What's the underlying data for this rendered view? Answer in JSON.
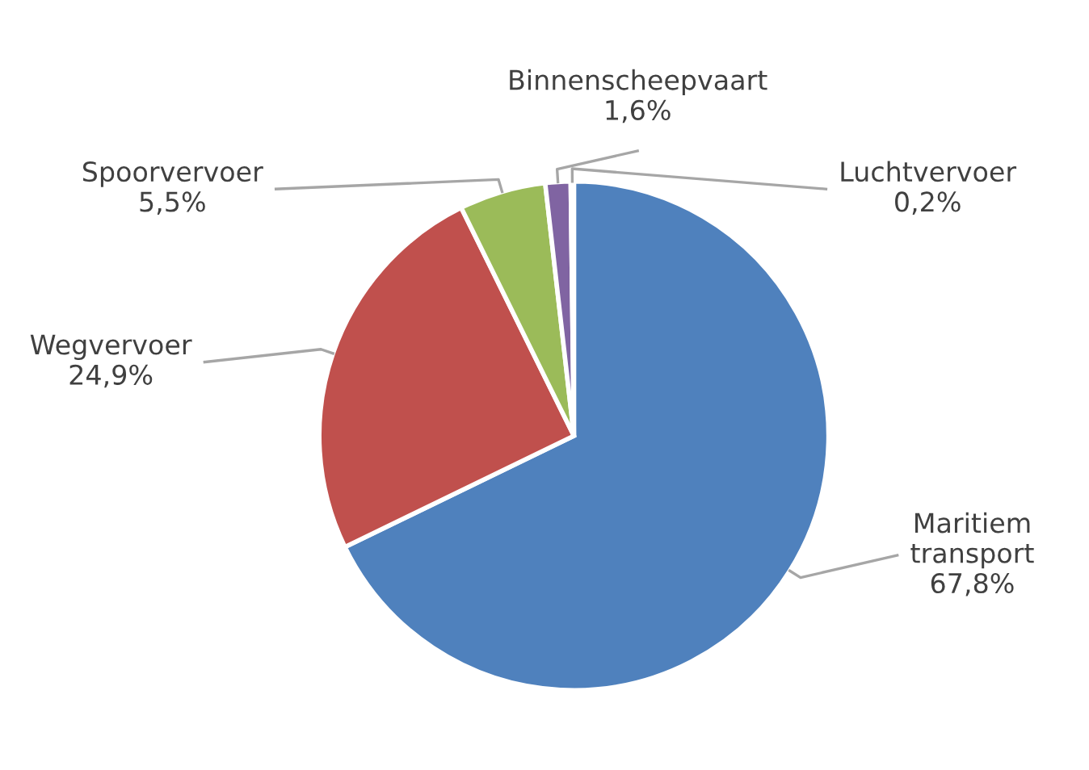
{
  "chart_data": {
    "type": "pie",
    "categories": [
      "Maritiem transport",
      "Wegvervoer",
      "Spoorvervoer",
      "Binnenscheepvaart",
      "Luchtvervoer"
    ],
    "values": [
      67.8,
      24.9,
      5.5,
      1.6,
      0.2
    ],
    "value_labels": [
      "67,8%",
      "24,9%",
      "5,5%",
      "1,6%",
      "0,2%"
    ],
    "colors": [
      "#4f81bd",
      "#c0504d",
      "#9bbb59",
      "#8064a2",
      "#4bacc6"
    ],
    "legend": false
  }
}
